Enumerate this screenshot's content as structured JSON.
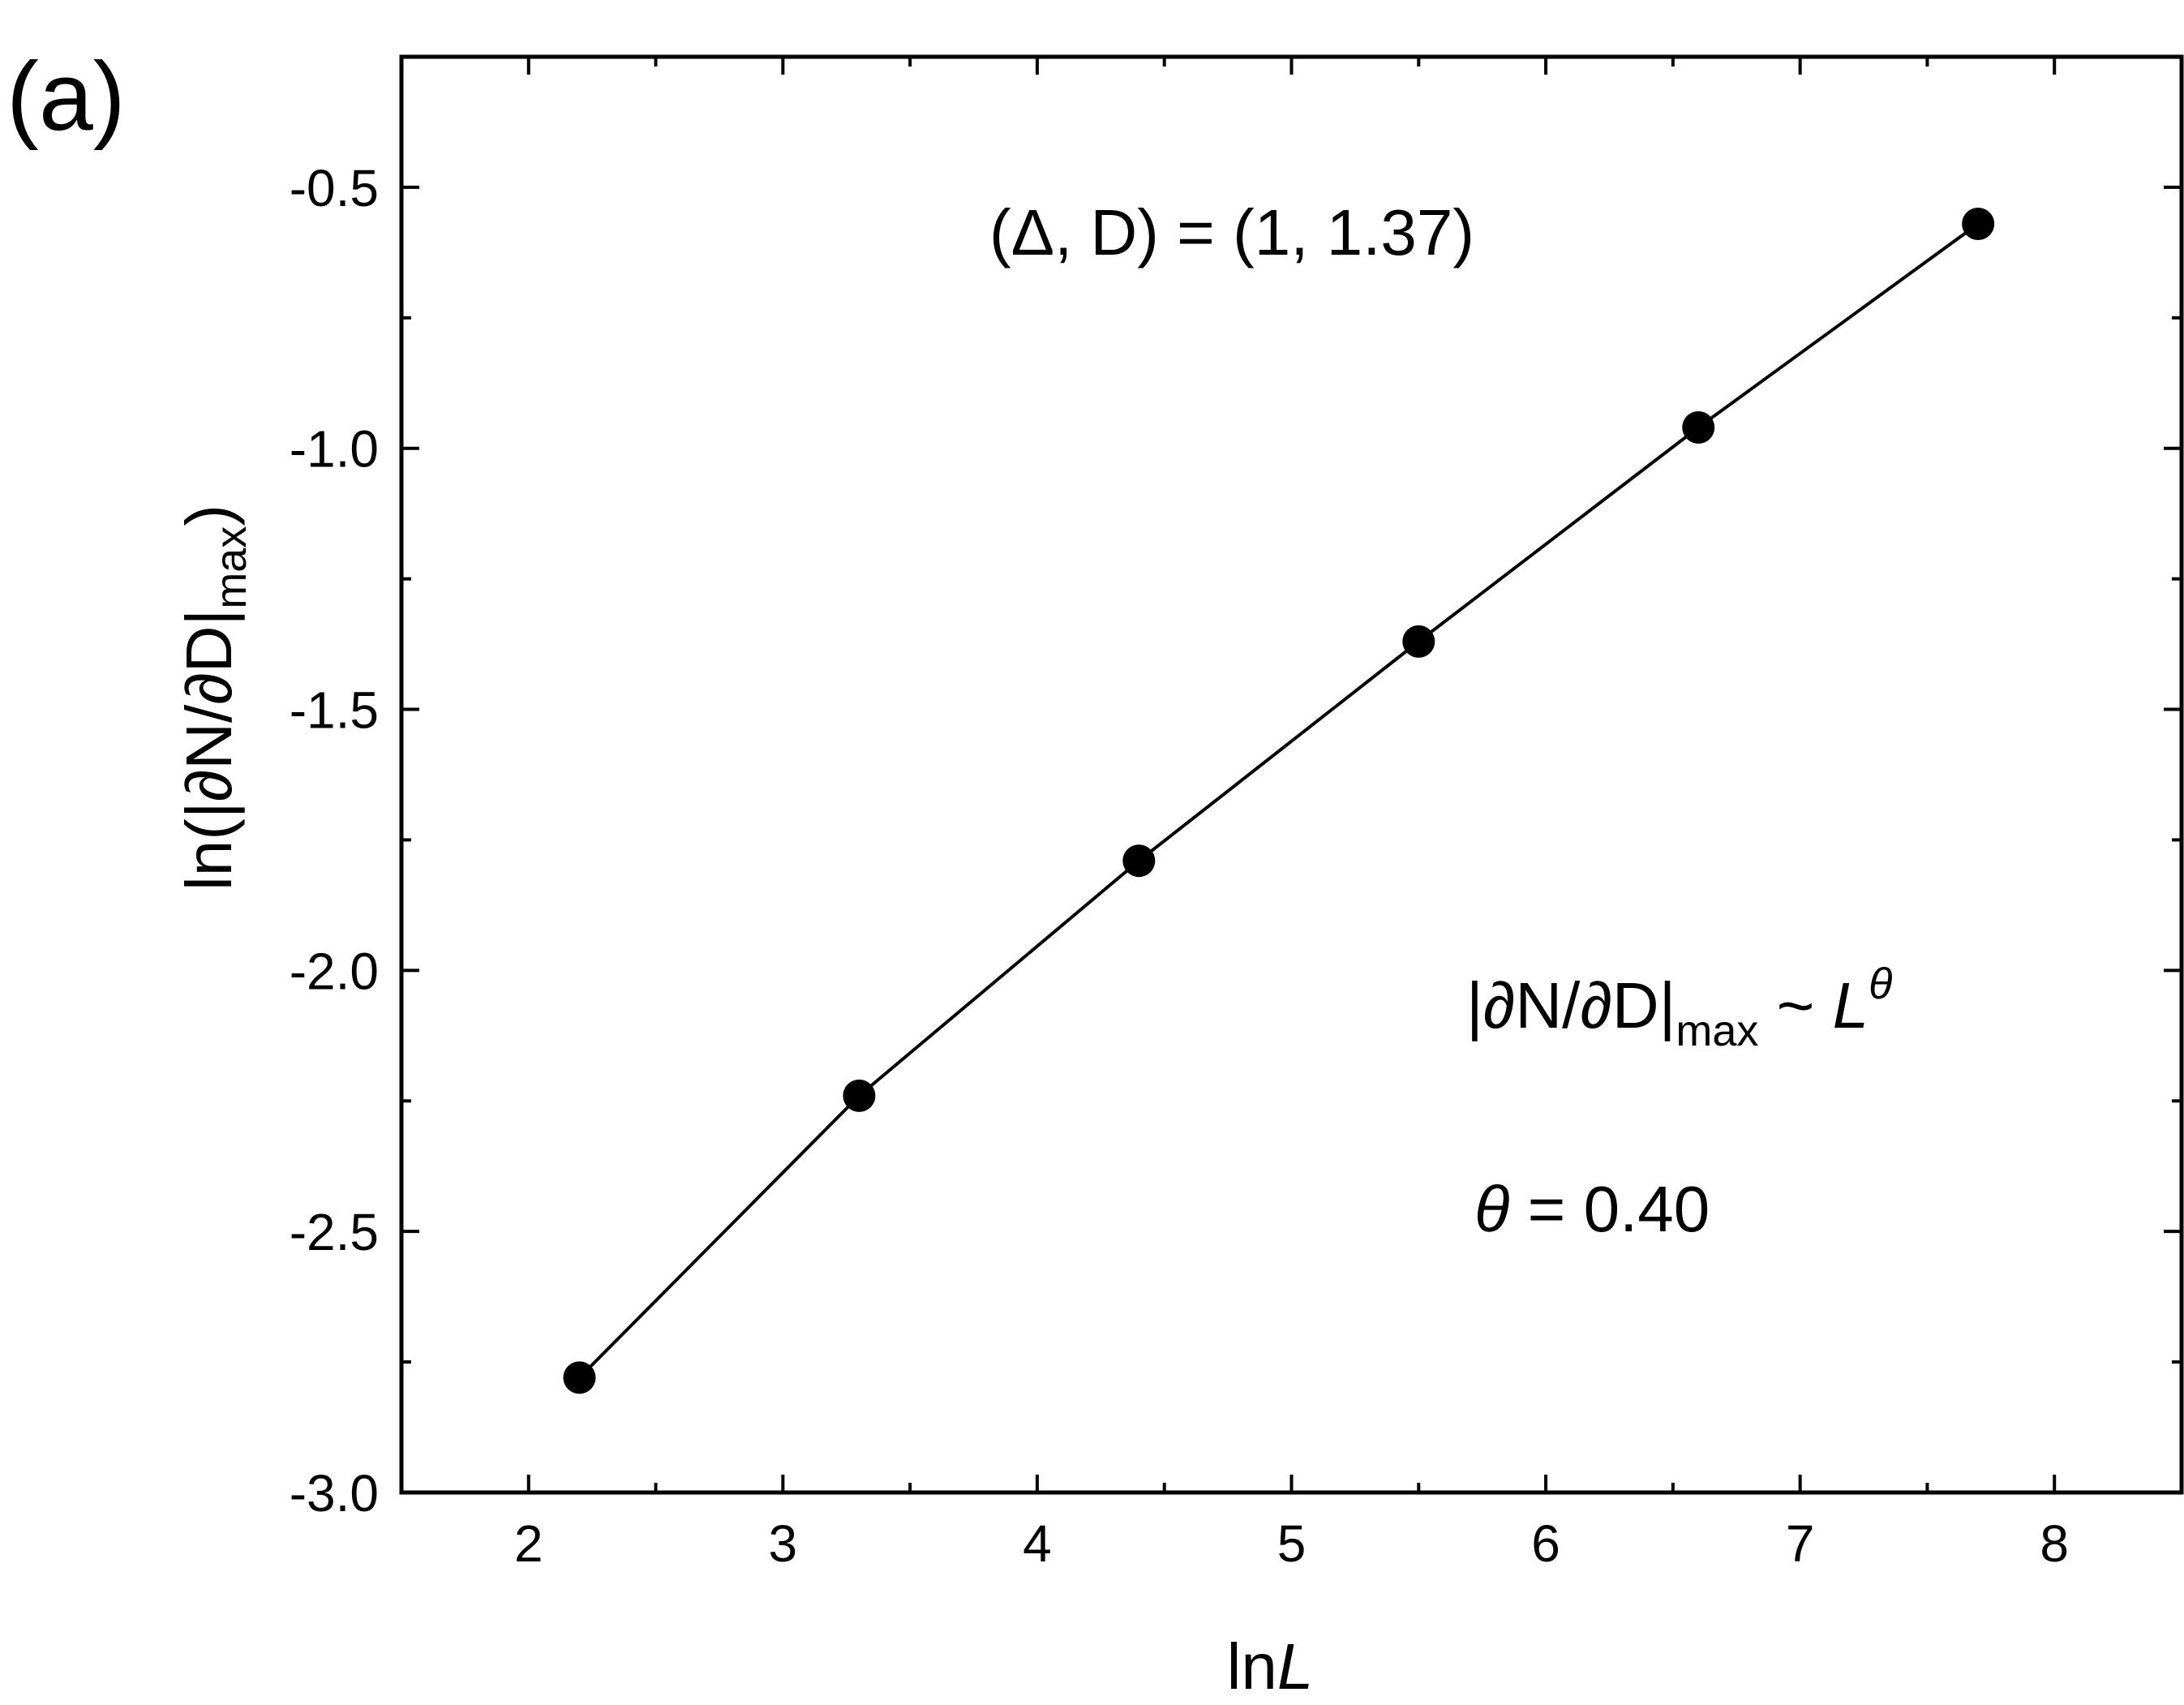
{
  "chart_data": {
    "type": "scatter",
    "panel_label": "(a)",
    "xlabel": {
      "prefix": "ln",
      "italic": "L"
    },
    "ylabel": {
      "main": "ln(|∂N/∂D|",
      "sub": "max",
      "close": ")"
    },
    "xlim": [
      1.5,
      8.5
    ],
    "ylim": [
      -3.0,
      -0.25
    ],
    "xticks": [
      2,
      3,
      4,
      5,
      6,
      7,
      8
    ],
    "xtick_labels": [
      "2",
      "3",
      "4",
      "5",
      "6",
      "7",
      "8"
    ],
    "xminor": [
      2.5,
      3.5,
      4.5,
      5.5,
      6.5,
      7.5
    ],
    "yticks": [
      -3.0,
      -2.5,
      -2.0,
      -1.5,
      -1.0,
      -0.5
    ],
    "ytick_labels": [
      "-3.0",
      "-2.5",
      "-2.0",
      "-1.5",
      "-1.0",
      "-0.5"
    ],
    "yminor": [
      -2.75,
      -2.25,
      -1.75,
      -1.25,
      -0.75,
      -0.25
    ],
    "grid": false,
    "series": [
      {
        "marker": "circle",
        "line": true,
        "color": "#000000",
        "x": [
          2.2,
          3.3,
          4.4,
          5.5,
          6.6,
          7.7
        ],
        "y": [
          -2.78,
          -2.24,
          -1.79,
          -1.37,
          -0.96,
          -0.57
        ]
      }
    ],
    "annotations": {
      "params": "(Δ, D) = (1, 1.37)",
      "scaling": {
        "left": "|∂N/∂D|",
        "sub": "max",
        "mid": " ~ ",
        "base": "L",
        "exp": "θ"
      },
      "theta": {
        "symbol": "θ",
        "value": " = 0.40"
      }
    }
  }
}
